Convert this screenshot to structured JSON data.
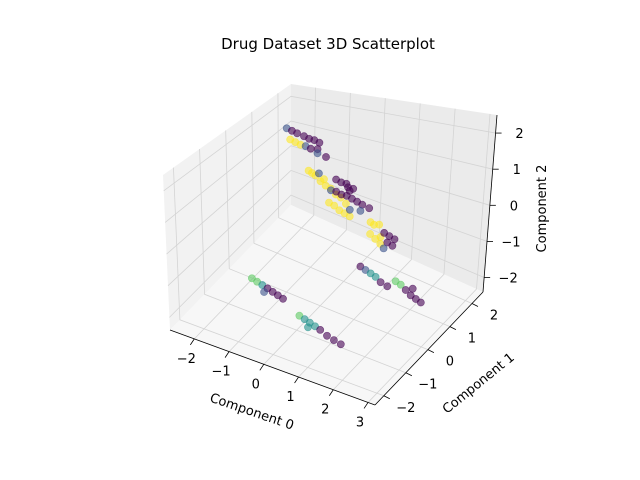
{
  "chart_data": {
    "type": "scatter",
    "projection": "3d",
    "title": "Drug Dataset 3D Scatterplot",
    "xlabel": "Component 0",
    "ylabel": "Component 1",
    "zlabel": "Component 2",
    "xlim": [
      -2.7,
      3.2
    ],
    "ylim": [
      -2.4,
      2.5
    ],
    "zlim": [
      -2.4,
      2.5
    ],
    "xticks": [
      "−2",
      "−1",
      "0",
      "1",
      "2",
      "3"
    ],
    "yticks": [
      "−2",
      "−1",
      "0",
      "1",
      "2"
    ],
    "zticks": [
      "−2",
      "−1",
      "0",
      "1",
      "2"
    ],
    "grid": true,
    "colormap": "viridis",
    "class_colors": [
      "#440154",
      "#3b528b",
      "#21918c",
      "#5ec962",
      "#fde725"
    ],
    "marker_alpha": 0.6,
    "series": [
      {
        "points": [
          {
            "x": -2.45,
            "y": 2.0,
            "z": 1.2,
            "c": 1
          },
          {
            "x": -2.3,
            "y": 2.0,
            "z": 1.15,
            "c": 0
          },
          {
            "x": -2.15,
            "y": 2.0,
            "z": 1.1,
            "c": 0
          },
          {
            "x": -1.95,
            "y": 2.0,
            "z": 1.05,
            "c": 0
          },
          {
            "x": -1.8,
            "y": 2.0,
            "z": 1.0,
            "c": 0
          },
          {
            "x": -1.65,
            "y": 2.0,
            "z": 1.0,
            "c": 0
          },
          {
            "x": -1.5,
            "y": 2.0,
            "z": 0.95,
            "c": 0
          },
          {
            "x": -2.35,
            "y": 2.0,
            "z": 0.8,
            "c": 4
          },
          {
            "x": -2.2,
            "y": 2.0,
            "z": 0.75,
            "c": 4
          },
          {
            "x": -2.05,
            "y": 2.0,
            "z": 0.7,
            "c": 4
          },
          {
            "x": -1.9,
            "y": 2.0,
            "z": 0.7,
            "c": 1
          },
          {
            "x": -1.75,
            "y": 2.0,
            "z": 0.65,
            "c": 0
          },
          {
            "x": -1.55,
            "y": 2.0,
            "z": 0.7,
            "c": 0
          },
          {
            "x": -1.55,
            "y": 2.0,
            "z": 0.55,
            "c": 1
          },
          {
            "x": -1.3,
            "y": 2.0,
            "z": 0.5,
            "c": 0
          },
          {
            "x": -1.3,
            "y": 1.3,
            "z": 0.55,
            "c": 4
          },
          {
            "x": -1.2,
            "y": 1.3,
            "z": 0.5,
            "c": 4
          },
          {
            "x": -1.1,
            "y": 1.3,
            "z": 0.45,
            "c": 4
          },
          {
            "x": -0.95,
            "y": 1.3,
            "z": 0.3,
            "c": 4
          },
          {
            "x": -0.8,
            "y": 1.3,
            "z": 0.2,
            "c": 4
          },
          {
            "x": -0.65,
            "y": 1.3,
            "z": 0.15,
            "c": 4
          },
          {
            "x": -0.5,
            "y": 1.3,
            "z": 0.0,
            "c": 4
          },
          {
            "x": -0.35,
            "y": 1.3,
            "z": -0.05,
            "c": 4
          },
          {
            "x": -0.2,
            "y": 1.3,
            "z": -0.2,
            "c": 4
          },
          {
            "x": -0.85,
            "y": 1.3,
            "z": 0.4,
            "c": 4
          },
          {
            "x": -1.0,
            "y": 1.3,
            "z": 0.55,
            "c": 1
          },
          {
            "x": -0.5,
            "y": 1.3,
            "z": 0.5,
            "c": 0
          },
          {
            "x": -0.35,
            "y": 1.3,
            "z": 0.45,
            "c": 0
          },
          {
            "x": -0.2,
            "y": 1.3,
            "z": 0.45,
            "c": 0
          },
          {
            "x": -0.15,
            "y": 1.3,
            "z": 0.35,
            "c": 0
          },
          {
            "x": 0.0,
            "y": 1.3,
            "z": 0.35,
            "c": 0
          },
          {
            "x": -0.1,
            "y": 1.3,
            "z": 0.25,
            "c": 0
          },
          {
            "x": 0.05,
            "y": 0.3,
            "z": 1.0,
            "c": 1
          },
          {
            "x": 0.2,
            "y": 0.3,
            "z": 1.0,
            "c": 0
          },
          {
            "x": 0.35,
            "y": 0.3,
            "z": 0.95,
            "c": 0
          },
          {
            "x": 0.5,
            "y": 0.3,
            "z": 0.95,
            "c": 0
          },
          {
            "x": 0.65,
            "y": 0.3,
            "z": 0.9,
            "c": 0
          },
          {
            "x": 0.8,
            "y": 0.3,
            "z": 0.85,
            "c": 0
          },
          {
            "x": 0.95,
            "y": 0.3,
            "z": 0.8,
            "c": 0
          },
          {
            "x": 1.15,
            "y": 0.3,
            "z": 0.75,
            "c": 0
          },
          {
            "x": 0.0,
            "y": 0.3,
            "z": 0.6,
            "c": 4
          },
          {
            "x": 0.15,
            "y": 0.3,
            "z": 0.55,
            "c": 4
          },
          {
            "x": 0.3,
            "y": 0.3,
            "z": 0.45,
            "c": 4
          },
          {
            "x": 0.45,
            "y": 0.3,
            "z": 0.4,
            "c": 4
          },
          {
            "x": 0.6,
            "y": 0.3,
            "z": 0.35,
            "c": 4
          },
          {
            "x": 0.6,
            "y": 0.3,
            "z": 0.55,
            "c": 1
          },
          {
            "x": 0.9,
            "y": 0.3,
            "z": 0.6,
            "c": 1
          },
          {
            "x": 1.2,
            "y": 0.3,
            "z": 0.35,
            "c": 4
          },
          {
            "x": 1.3,
            "y": 0.3,
            "z": 0.3,
            "c": 4
          },
          {
            "x": 1.45,
            "y": 0.3,
            "z": 0.35,
            "c": 4
          },
          {
            "x": 1.2,
            "y": 0.3,
            "z": 0.0,
            "c": 4
          },
          {
            "x": 1.35,
            "y": 0.3,
            "z": -0.1,
            "c": 4
          },
          {
            "x": 1.5,
            "y": 0.3,
            "z": -0.2,
            "c": 4
          },
          {
            "x": 1.5,
            "y": 0.3,
            "z": 0.0,
            "c": 4
          },
          {
            "x": 1.6,
            "y": 0.3,
            "z": 0.15,
            "c": 0
          },
          {
            "x": 1.75,
            "y": 0.3,
            "z": 0.1,
            "c": 0
          },
          {
            "x": 1.9,
            "y": 0.3,
            "z": 0.05,
            "c": 0
          },
          {
            "x": 1.7,
            "y": 0.3,
            "z": -0.1,
            "c": 0
          },
          {
            "x": 1.85,
            "y": 0.3,
            "z": -0.15,
            "c": 0
          },
          {
            "x": 1.6,
            "y": 0.3,
            "z": -0.3,
            "c": 1
          },
          {
            "x": 0.95,
            "y": 0.3,
            "z": -1.05,
            "c": 0
          },
          {
            "x": 1.1,
            "y": 0.3,
            "z": -1.1,
            "c": 1
          },
          {
            "x": 1.25,
            "y": 0.3,
            "z": -1.15,
            "c": 2
          },
          {
            "x": 1.4,
            "y": 0.3,
            "z": -1.2,
            "c": 2
          },
          {
            "x": 1.55,
            "y": 0.3,
            "z": -1.3,
            "c": 0
          },
          {
            "x": 1.75,
            "y": 0.3,
            "z": -1.35,
            "c": 0
          },
          {
            "x": 2.3,
            "y": -0.2,
            "z": -0.7,
            "c": 3
          },
          {
            "x": 2.45,
            "y": -0.2,
            "z": -0.75,
            "c": 3
          },
          {
            "x": 2.6,
            "y": -0.2,
            "z": -0.85,
            "c": 0
          },
          {
            "x": 2.75,
            "y": -0.2,
            "z": -0.95,
            "c": 0
          },
          {
            "x": 2.9,
            "y": -0.2,
            "z": -1.0,
            "c": 0
          },
          {
            "x": 3.05,
            "y": -0.2,
            "z": -1.05,
            "c": 0
          },
          {
            "x": 2.8,
            "y": -0.2,
            "z": -0.75,
            "c": 0
          },
          {
            "x": -1.3,
            "y": -1.0,
            "z": -1.3,
            "c": 3
          },
          {
            "x": -1.15,
            "y": -1.0,
            "z": -1.35,
            "c": 3
          },
          {
            "x": -1.0,
            "y": -1.0,
            "z": -1.4,
            "c": 2
          },
          {
            "x": -0.85,
            "y": -1.0,
            "z": -1.45,
            "c": 0
          },
          {
            "x": -0.7,
            "y": -1.0,
            "z": -1.5,
            "c": 0
          },
          {
            "x": -0.55,
            "y": -1.0,
            "z": -1.55,
            "c": 0
          },
          {
            "x": -0.4,
            "y": -1.0,
            "z": -1.6,
            "c": 0
          },
          {
            "x": -0.95,
            "y": -1.0,
            "z": -1.6,
            "c": 1
          },
          {
            "x": 0.35,
            "y": -1.4,
            "z": -1.55,
            "c": 3
          },
          {
            "x": 0.5,
            "y": -1.4,
            "z": -1.6,
            "c": 2
          },
          {
            "x": 0.65,
            "y": -1.4,
            "z": -1.65,
            "c": 2
          },
          {
            "x": 0.8,
            "y": -1.4,
            "z": -1.7,
            "c": 2
          },
          {
            "x": 0.95,
            "y": -1.4,
            "z": -1.75,
            "c": 0
          },
          {
            "x": 1.15,
            "y": -1.4,
            "z": -1.85,
            "c": 0
          },
          {
            "x": 1.35,
            "y": -1.4,
            "z": -1.9,
            "c": 0
          },
          {
            "x": 1.55,
            "y": -1.4,
            "z": -1.95,
            "c": 0
          },
          {
            "x": 0.6,
            "y": -1.4,
            "z": -1.8,
            "c": 2
          }
        ]
      }
    ]
  }
}
